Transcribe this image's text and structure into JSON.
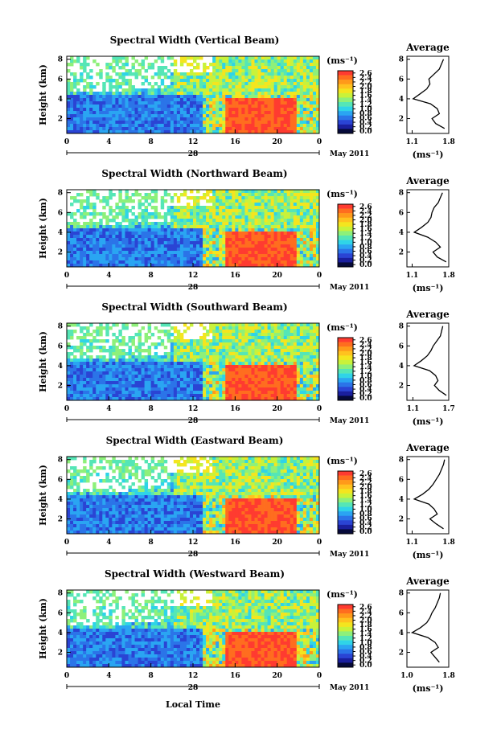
{
  "colorbar": {
    "unit": "(ms⁻¹)",
    "ticks": [
      "2.6",
      "2.4",
      "2.2",
      "2.0",
      "1.8",
      "1.6",
      "1.4",
      "1.2",
      "1.0",
      "0.8",
      "0.6",
      "0.4",
      "0.2",
      "0.0"
    ],
    "colors": [
      "#ff3b30",
      "#ff6d1f",
      "#ff9a1a",
      "#ffc21f",
      "#f4e51f",
      "#c9f23a",
      "#8ef07a",
      "#55e6b6",
      "#2fd4e8",
      "#2aa5f2",
      "#2b74e8",
      "#2a44d4",
      "#1a1f9e",
      "#060a3a"
    ]
  },
  "panel_x_ticks": [
    "0",
    "4",
    "8",
    "12",
    "16",
    "20",
    "0"
  ],
  "day_label": "28",
  "month_label": "May 2011",
  "xlabel": "Local Time",
  "ylabel": "Height (km)",
  "y_ticks": [
    "8",
    "6",
    "4",
    "2"
  ],
  "avg_title": "Average",
  "avg_unit": "(ms⁻¹)",
  "avg_y_ticks": [
    "8",
    "6",
    "4",
    "2"
  ],
  "chart_data": [
    {
      "type": "heatmap",
      "title": "Spectral Width (Vertical Beam)",
      "x_range_hours": [
        0,
        24
      ],
      "y_range_km": [
        0.5,
        8.3
      ],
      "average_profile": {
        "title": "Average",
        "xlim": [
          1.0,
          1.8
        ],
        "x_tick_labels": [
          "1.1",
          "1.8"
        ],
        "height_km": [
          1.0,
          1.5,
          2.0,
          2.5,
          3.0,
          3.5,
          4.0,
          4.5,
          5.0,
          5.5,
          6.0,
          6.5,
          7.0,
          7.5,
          8.0
        ],
        "width": [
          1.72,
          1.55,
          1.48,
          1.62,
          1.58,
          1.45,
          1.12,
          1.25,
          1.38,
          1.44,
          1.42,
          1.52,
          1.62,
          1.66,
          1.7
        ]
      }
    },
    {
      "type": "heatmap",
      "title": "Spectral Width (Northward Beam)",
      "x_range_hours": [
        0,
        24
      ],
      "y_range_km": [
        0.5,
        8.3
      ],
      "average_profile": {
        "title": "Average",
        "xlim": [
          1.0,
          1.8
        ],
        "x_tick_labels": [
          "1.1",
          "1.8"
        ],
        "height_km": [
          1.0,
          1.5,
          2.0,
          2.5,
          3.0,
          3.5,
          4.0,
          4.5,
          5.0,
          5.5,
          6.0,
          6.5,
          7.0,
          7.5,
          8.0
        ],
        "width": [
          1.75,
          1.58,
          1.5,
          1.64,
          1.55,
          1.4,
          1.14,
          1.28,
          1.4,
          1.46,
          1.48,
          1.52,
          1.6,
          1.64,
          1.68
        ]
      }
    },
    {
      "type": "heatmap",
      "title": "Spectral Width (Southward Beam)",
      "x_range_hours": [
        0,
        24
      ],
      "y_range_km": [
        0.5,
        8.3
      ],
      "average_profile": {
        "title": "Average",
        "xlim": [
          1.0,
          1.7
        ],
        "x_tick_labels": [
          "1.1",
          "1.7"
        ],
        "height_km": [
          1.0,
          1.5,
          2.0,
          2.5,
          3.0,
          3.5,
          4.0,
          4.5,
          5.0,
          5.5,
          6.0,
          6.5,
          7.0,
          7.5,
          8.0
        ],
        "width": [
          1.66,
          1.54,
          1.46,
          1.52,
          1.48,
          1.38,
          1.12,
          1.24,
          1.34,
          1.4,
          1.44,
          1.5,
          1.56,
          1.58,
          1.6
        ]
      }
    },
    {
      "type": "heatmap",
      "title": "Spectral Width (Eastward Beam)",
      "x_range_hours": [
        0,
        24
      ],
      "y_range_km": [
        0.5,
        8.3
      ],
      "average_profile": {
        "title": "Average",
        "xlim": [
          1.0,
          1.8
        ],
        "x_tick_labels": [
          "1.1",
          "1.8"
        ],
        "height_km": [
          1.0,
          1.5,
          2.0,
          2.5,
          3.0,
          3.5,
          4.0,
          4.5,
          5.0,
          5.5,
          6.0,
          6.5,
          7.0,
          7.5,
          8.0
        ],
        "width": [
          1.7,
          1.56,
          1.44,
          1.58,
          1.52,
          1.42,
          1.14,
          1.3,
          1.42,
          1.5,
          1.56,
          1.62,
          1.66,
          1.7,
          1.72
        ]
      }
    },
    {
      "type": "heatmap",
      "title": "Spectral Width (Westward Beam)",
      "x_range_hours": [
        0,
        24
      ],
      "y_range_km": [
        0.5,
        8.3
      ],
      "average_profile": {
        "title": "Average",
        "xlim": [
          1.0,
          1.8
        ],
        "x_tick_labels": [
          "1.0",
          "1.8"
        ],
        "height_km": [
          1.0,
          1.5,
          2.0,
          2.5,
          3.0,
          3.5,
          4.0,
          4.5,
          5.0,
          5.5,
          6.0,
          6.5,
          7.0,
          7.5,
          8.0
        ],
        "width": [
          1.62,
          1.54,
          1.46,
          1.6,
          1.54,
          1.4,
          1.1,
          1.26,
          1.38,
          1.44,
          1.48,
          1.54,
          1.58,
          1.62,
          1.64
        ]
      }
    }
  ]
}
